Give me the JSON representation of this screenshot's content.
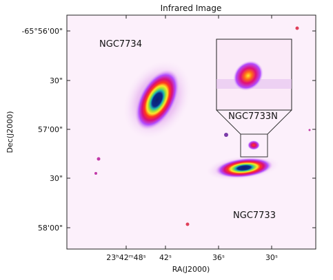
{
  "title": "Infrared Image",
  "y_axis": {
    "label": "Dec(J2000)",
    "ticks": [
      "-65°56'00\"",
      "30\"",
      "57'00\"",
      "30\"",
      "58'00\""
    ]
  },
  "x_axis": {
    "label": "RA(J2000)",
    "ticks": [
      "23ʰ42ᵐ48ˢ",
      "42ˢ",
      "36ˢ",
      "30ˢ"
    ]
  },
  "annotations": [
    "NGC7734",
    "NGC7733N",
    "NGC7733"
  ]
}
